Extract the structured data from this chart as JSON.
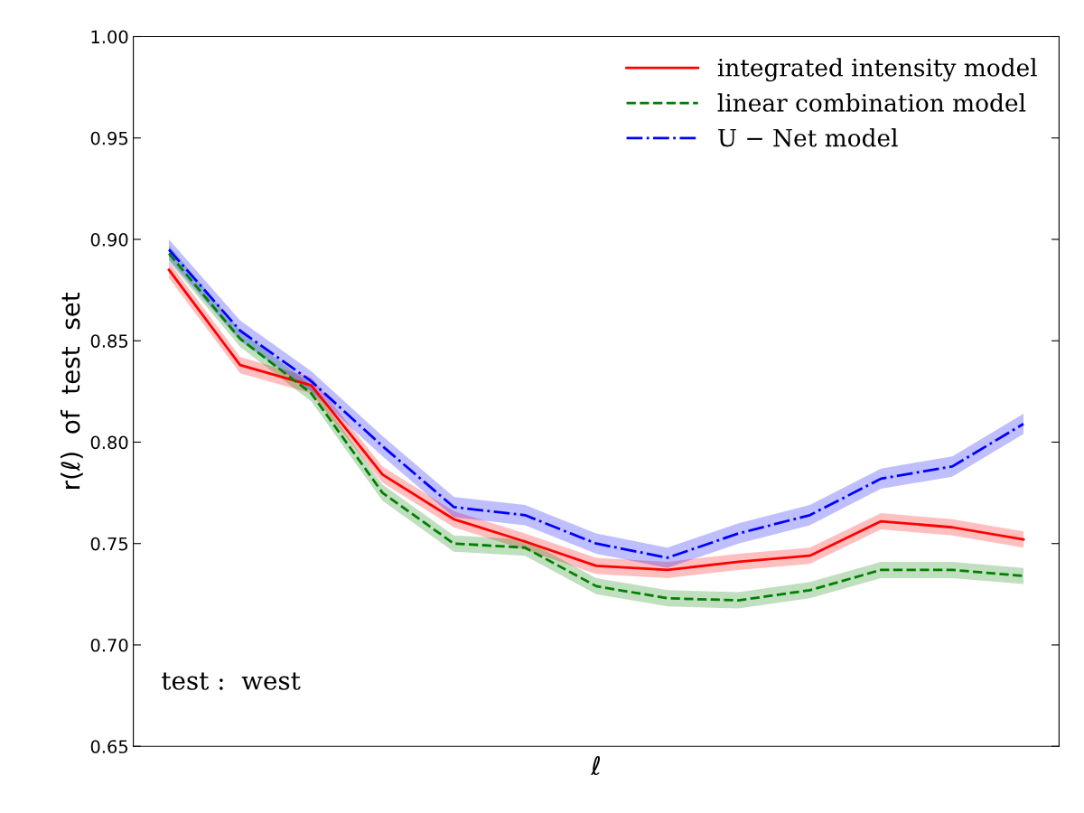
{
  "chart_data": {
    "type": "line",
    "xlabel": "ℓ",
    "ylabel": "r(ℓ)  of  test  set",
    "categories": [
      null,
      null,
      null,
      null,
      null,
      null,
      null,
      null,
      null,
      null,
      null,
      null,
      null
    ],
    "series": [
      {
        "name": "integrated intensity model",
        "color": "#ff0000",
        "line_style": "solid",
        "values": [
          0.885,
          0.838,
          0.828,
          0.784,
          0.762,
          0.751,
          0.739,
          0.737,
          0.741,
          0.744,
          0.761,
          0.758,
          0.752
        ],
        "lower": [
          0.881,
          0.834,
          0.824,
          0.78,
          0.758,
          0.747,
          0.735,
          0.733,
          0.737,
          0.74,
          0.757,
          0.754,
          0.748
        ],
        "upper": [
          0.889,
          0.842,
          0.832,
          0.788,
          0.766,
          0.755,
          0.743,
          0.741,
          0.745,
          0.748,
          0.765,
          0.762,
          0.756
        ]
      },
      {
        "name": "linear combination model",
        "color": "#008000",
        "line_style": "dashed",
        "values": [
          0.893,
          0.851,
          0.824,
          0.775,
          0.75,
          0.748,
          0.729,
          0.723,
          0.722,
          0.727,
          0.737,
          0.737,
          0.734
        ],
        "lower": [
          0.889,
          0.847,
          0.82,
          0.771,
          0.746,
          0.744,
          0.725,
          0.719,
          0.718,
          0.723,
          0.733,
          0.733,
          0.73
        ],
        "upper": [
          0.897,
          0.855,
          0.828,
          0.779,
          0.754,
          0.752,
          0.733,
          0.727,
          0.726,
          0.731,
          0.741,
          0.741,
          0.738
        ]
      },
      {
        "name": "U − Net model",
        "color": "#0000ff",
        "line_style": "dashdot",
        "values": [
          0.895,
          0.855,
          0.83,
          0.798,
          0.768,
          0.764,
          0.75,
          0.743,
          0.755,
          0.764,
          0.782,
          0.788,
          0.809
        ],
        "lower": [
          0.89,
          0.85,
          0.825,
          0.793,
          0.763,
          0.759,
          0.745,
          0.738,
          0.75,
          0.759,
          0.777,
          0.783,
          0.804
        ],
        "upper": [
          0.9,
          0.86,
          0.835,
          0.803,
          0.773,
          0.769,
          0.755,
          0.748,
          0.76,
          0.769,
          0.787,
          0.793,
          0.814
        ]
      }
    ],
    "ylim": [
      0.65,
      1.0
    ],
    "yticks": [
      {
        "value": 0.65,
        "label": "0.65"
      },
      {
        "value": 0.7,
        "label": "0.70"
      },
      {
        "value": 0.75,
        "label": "0.75"
      },
      {
        "value": 0.8,
        "label": "0.80"
      },
      {
        "value": 0.85,
        "label": "0.85"
      },
      {
        "value": 0.9,
        "label": "0.90"
      },
      {
        "value": 0.95,
        "label": "0.95"
      },
      {
        "value": 1.0,
        "label": "1.00"
      }
    ],
    "grid": false,
    "legend": "top right",
    "annotations": [
      "test :  west"
    ]
  }
}
